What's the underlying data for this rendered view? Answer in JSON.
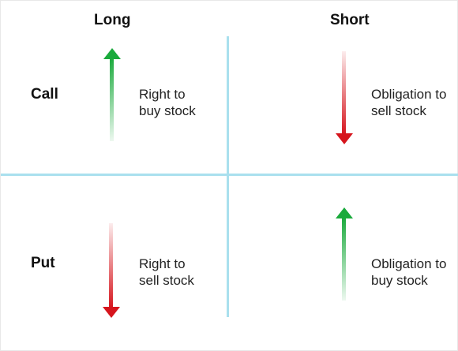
{
  "columns": {
    "long": "Long",
    "short": "Short"
  },
  "rows": {
    "call": "Call",
    "put": "Put"
  },
  "cells": {
    "long_call": {
      "text_1": "Right to",
      "text_2": "buy stock",
      "direction": "up",
      "color": "#1aaa3c"
    },
    "short_call": {
      "text_1": "Obligation to",
      "text_2": "sell stock",
      "direction": "down",
      "color": "#d6151d"
    },
    "long_put": {
      "text_1": "Right to",
      "text_2": "sell stock",
      "direction": "down",
      "color": "#d6151d"
    },
    "short_put": {
      "text_1": "Obligation to",
      "text_2": "buy stock",
      "direction": "up",
      "color": "#1aaa3c"
    }
  },
  "colors": {
    "divider": "#a9e0ee"
  }
}
